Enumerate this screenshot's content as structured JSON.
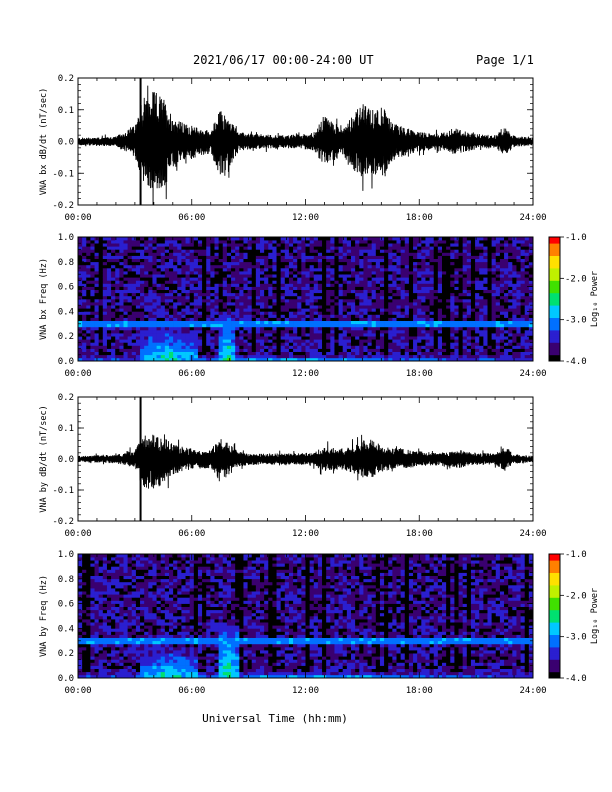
{
  "header": {
    "title": "2021/06/17  00:00-24:00 UT",
    "page": "Page 1/1"
  },
  "footer": {
    "xlabel": "Universal Time (hh:mm)"
  },
  "colors": {
    "trace": "#000000",
    "axes": "#000000",
    "spectrogram_background": "#2b0a5e",
    "colormap": [
      "#000000",
      "#3a0070",
      "#2a1fd0",
      "#0070ff",
      "#00c8ff",
      "#00e070",
      "#40e000",
      "#c0f000",
      "#ffe000",
      "#ff8000",
      "#ff0000"
    ]
  },
  "chart_data": [
    {
      "type": "line",
      "panel": "bx_waveform",
      "ylabel": "VNA bx dB/dt (nT/sec)",
      "ylim": [
        -0.2,
        0.2
      ],
      "yticks": [
        -0.2,
        -0.1,
        0.0,
        0.1,
        0.2
      ],
      "ytick_labels": [
        "-0.2",
        "-0.1",
        "0.0",
        "0.1",
        "0.2"
      ],
      "xlim_hours": [
        0,
        24
      ],
      "xticks_hours": [
        0,
        6,
        12,
        18,
        24
      ],
      "xtick_labels": [
        "00:00",
        "06:00",
        "12:00",
        "18:00",
        "24:00"
      ],
      "spike_hour": 3.3,
      "series": [
        {
          "hour": [
            0,
            1,
            2,
            3,
            3.5,
            4,
            4.5,
            5,
            5.5,
            6,
            6.5,
            7,
            7.5,
            8,
            8.5,
            9,
            10,
            11,
            12,
            12.5,
            13,
            13.5,
            14,
            14.5,
            15,
            15.5,
            16,
            16.5,
            17,
            17.5,
            18,
            19,
            20,
            21,
            22,
            22.5,
            23,
            24
          ],
          "upper": [
            0.012,
            0.014,
            0.016,
            0.05,
            0.13,
            0.16,
            0.14,
            0.08,
            0.06,
            0.05,
            0.04,
            0.035,
            0.1,
            0.07,
            0.03,
            0.025,
            0.022,
            0.02,
            0.025,
            0.03,
            0.085,
            0.06,
            0.045,
            0.09,
            0.12,
            0.1,
            0.12,
            0.065,
            0.05,
            0.04,
            0.03,
            0.025,
            0.04,
            0.025,
            0.02,
            0.045,
            0.018,
            0.012
          ],
          "lower": [
            -0.012,
            -0.014,
            -0.016,
            -0.05,
            -0.14,
            -0.16,
            -0.15,
            -0.085,
            -0.06,
            -0.055,
            -0.045,
            -0.04,
            -0.11,
            -0.08,
            -0.03,
            -0.025,
            -0.022,
            -0.02,
            -0.025,
            -0.03,
            -0.085,
            -0.06,
            -0.045,
            -0.09,
            -0.12,
            -0.1,
            -0.12,
            -0.065,
            -0.05,
            -0.04,
            -0.03,
            -0.025,
            -0.04,
            -0.025,
            -0.02,
            -0.045,
            -0.018,
            -0.012
          ]
        }
      ]
    },
    {
      "type": "heatmap",
      "panel": "bx_spectrogram",
      "ylabel": "VNA bx Freq (Hz)",
      "ylim": [
        0.0,
        1.0
      ],
      "yticks": [
        0.0,
        0.2,
        0.4,
        0.6,
        0.8,
        1.0
      ],
      "ytick_labels": [
        "0.0",
        "0.2",
        "0.4",
        "0.6",
        "0.8",
        "1.0"
      ],
      "xlim_hours": [
        0,
        24
      ],
      "xticks_hours": [
        0,
        6,
        12,
        18,
        24
      ],
      "xtick_labels": [
        "00:00",
        "06:00",
        "12:00",
        "18:00",
        "24:00"
      ],
      "colorbar": {
        "label": "Log₁₀ Power",
        "range": [
          -4.0,
          -1.0
        ],
        "ticks": [
          -4.0,
          -3.0,
          -2.0,
          -1.0
        ],
        "tick_labels": [
          "-4.0",
          "-3.0",
          "-2.0",
          "-1.0"
        ]
      },
      "line_freq_hz": 0.3,
      "features": [
        {
          "hour_start": 3.2,
          "hour_end": 6.4,
          "freq_top": 0.26,
          "level": -2.5
        },
        {
          "hour_start": 7.5,
          "hour_end": 8.3,
          "freq_top": 0.4,
          "level": -2.4
        },
        {
          "hour_start": 0.0,
          "hour_end": 24.0,
          "freq_top": 0.05,
          "level": -2.7
        }
      ]
    },
    {
      "type": "line",
      "panel": "by_waveform",
      "ylabel": "VNA by dB/dt (nT/sec)",
      "ylim": [
        -0.2,
        0.2
      ],
      "yticks": [
        -0.2,
        -0.1,
        0.0,
        0.1,
        0.2
      ],
      "ytick_labels": [
        "-0.2",
        "-0.1",
        "0.0",
        "0.1",
        "0.2"
      ],
      "xlim_hours": [
        0,
        24
      ],
      "xticks_hours": [
        0,
        6,
        12,
        18,
        24
      ],
      "xtick_labels": [
        "00:00",
        "06:00",
        "12:00",
        "18:00",
        "24:00"
      ],
      "spike_hour": 3.3,
      "series": [
        {
          "hour": [
            0,
            1,
            2,
            3,
            3.5,
            4,
            4.5,
            5,
            5.5,
            6,
            6.5,
            7,
            7.5,
            8,
            8.5,
            9,
            10,
            11,
            12,
            12.5,
            13,
            13.5,
            14,
            14.5,
            15,
            15.5,
            16,
            16.5,
            17,
            17.5,
            18,
            19,
            20,
            21,
            22,
            22.5,
            23,
            24
          ],
          "upper": [
            0.01,
            0.012,
            0.014,
            0.03,
            0.08,
            0.08,
            0.07,
            0.05,
            0.04,
            0.035,
            0.03,
            0.03,
            0.07,
            0.05,
            0.025,
            0.02,
            0.018,
            0.018,
            0.02,
            0.025,
            0.04,
            0.035,
            0.035,
            0.045,
            0.06,
            0.065,
            0.045,
            0.035,
            0.035,
            0.03,
            0.025,
            0.02,
            0.03,
            0.02,
            0.018,
            0.04,
            0.015,
            0.01
          ],
          "lower": [
            -0.01,
            -0.012,
            -0.014,
            -0.03,
            -0.1,
            -0.1,
            -0.08,
            -0.05,
            -0.04,
            -0.035,
            -0.03,
            -0.03,
            -0.075,
            -0.05,
            -0.025,
            -0.02,
            -0.018,
            -0.018,
            -0.02,
            -0.025,
            -0.04,
            -0.035,
            -0.035,
            -0.045,
            -0.06,
            -0.06,
            -0.045,
            -0.035,
            -0.035,
            -0.03,
            -0.025,
            -0.02,
            -0.03,
            -0.02,
            -0.018,
            -0.04,
            -0.015,
            -0.01
          ]
        }
      ]
    },
    {
      "type": "heatmap",
      "panel": "by_spectrogram",
      "ylabel": "VNA by Freq (Hz)",
      "ylim": [
        0.0,
        1.0
      ],
      "yticks": [
        0.0,
        0.2,
        0.4,
        0.6,
        0.8,
        1.0
      ],
      "ytick_labels": [
        "0.0",
        "0.2",
        "0.4",
        "0.6",
        "0.8",
        "1.0"
      ],
      "xlim_hours": [
        0,
        24
      ],
      "xticks_hours": [
        0,
        6,
        12,
        18,
        24
      ],
      "xtick_labels": [
        "00:00",
        "06:00",
        "12:00",
        "18:00",
        "24:00"
      ],
      "colorbar": {
        "label": "Log₁₀ Power",
        "range": [
          -4.0,
          -1.0
        ],
        "ticks": [
          -4.0,
          -3.0,
          -2.0,
          -1.0
        ],
        "tick_labels": [
          "-4.0",
          "-3.0",
          "-2.0",
          "-1.0"
        ]
      },
      "line_freq_hz": 0.3,
      "features": [
        {
          "hour_start": 3.2,
          "hour_end": 6.4,
          "freq_top": 0.24,
          "level": -2.5
        },
        {
          "hour_start": 7.4,
          "hour_end": 8.4,
          "freq_top": 0.42,
          "level": -2.3
        },
        {
          "hour_start": 0.0,
          "hour_end": 24.0,
          "freq_top": 0.05,
          "level": -2.7
        }
      ]
    }
  ]
}
